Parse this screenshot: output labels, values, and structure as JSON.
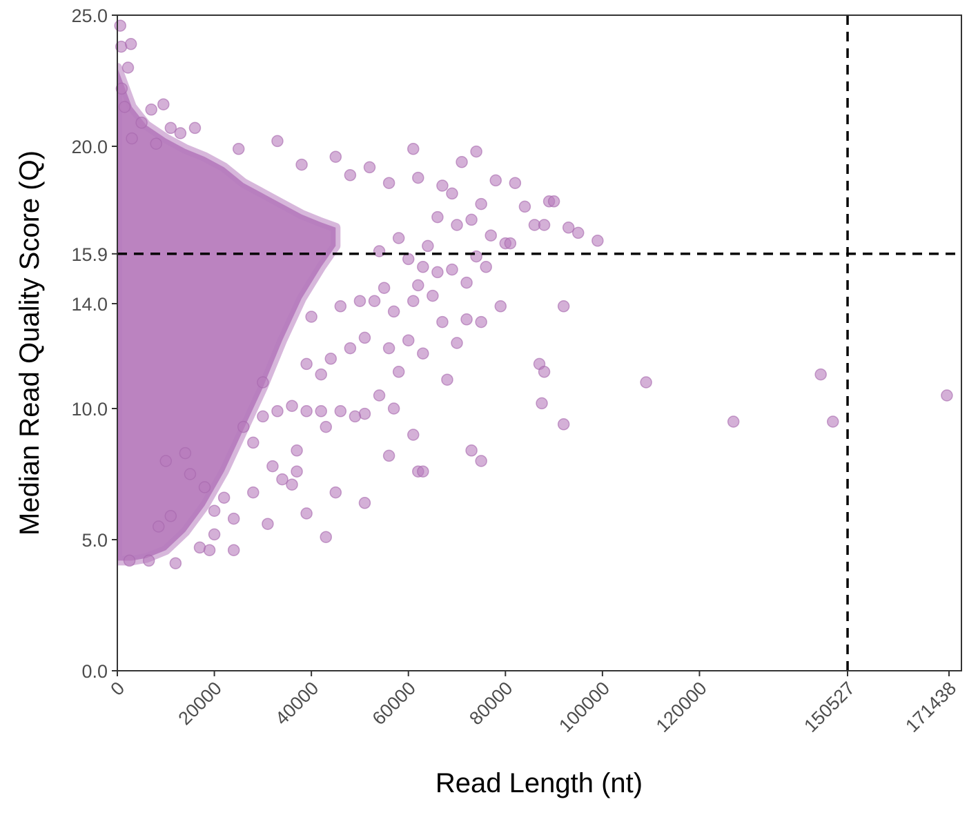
{
  "chart_data": {
    "type": "scatter",
    "title": "",
    "xlabel": "Read Length (nt)",
    "ylabel": "Median Read Quality Score (Q)",
    "xlim": [
      0,
      174000
    ],
    "ylim": [
      0,
      25
    ],
    "x_ticks": [
      {
        "value": 0,
        "label": "0"
      },
      {
        "value": 20000,
        "label": "20000"
      },
      {
        "value": 40000,
        "label": "40000"
      },
      {
        "value": 60000,
        "label": "60000"
      },
      {
        "value": 80000,
        "label": "80000"
      },
      {
        "value": 100000,
        "label": "100000"
      },
      {
        "value": 120000,
        "label": "120000"
      },
      {
        "value": 150527,
        "label": "150527"
      },
      {
        "value": 171438,
        "label": "171438"
      }
    ],
    "y_ticks": [
      {
        "value": 0,
        "label": "0.0"
      },
      {
        "value": 5,
        "label": "5.0"
      },
      {
        "value": 10,
        "label": "10.0"
      },
      {
        "value": 14,
        "label": "14.0"
      },
      {
        "value": 15.9,
        "label": "15.9"
      },
      {
        "value": 20,
        "label": "20.0"
      },
      {
        "value": 25,
        "label": "25.0"
      }
    ],
    "reference_lines": {
      "vertical_x": 150527,
      "horizontal_y": 15.9,
      "style": "dashed",
      "color": "#000000"
    },
    "point_color": "#b77cbd",
    "point_opacity": 0.6,
    "grid": false,
    "series": [
      {
        "points": [
          [
            600,
            24.6
          ],
          [
            800,
            23.8
          ],
          [
            2800,
            23.9
          ],
          [
            2200,
            23
          ],
          [
            900,
            22.2
          ],
          [
            1500,
            21.5
          ],
          [
            9500,
            21.6
          ],
          [
            7000,
            21.4
          ],
          [
            5000,
            20.9
          ],
          [
            11000,
            20.7
          ],
          [
            16000,
            20.7
          ],
          [
            13000,
            20.5
          ],
          [
            3000,
            20.3
          ],
          [
            8000,
            20.1
          ],
          [
            25000,
            19.9
          ],
          [
            33000,
            20.2
          ],
          [
            45000,
            19.6
          ],
          [
            38000,
            19.3
          ],
          [
            52000,
            19.2
          ],
          [
            61000,
            19.9
          ],
          [
            74000,
            19.8
          ],
          [
            71000,
            19.4
          ],
          [
            48000,
            18.9
          ],
          [
            56000,
            18.6
          ],
          [
            62000,
            18.8
          ],
          [
            67000,
            18.5
          ],
          [
            69000,
            18.2
          ],
          [
            78000,
            18.7
          ],
          [
            82000,
            18.6
          ],
          [
            89000,
            17.9
          ],
          [
            90000,
            17.9
          ],
          [
            75000,
            17.8
          ],
          [
            84000,
            17.7
          ],
          [
            66000,
            17.3
          ],
          [
            70000,
            17.0
          ],
          [
            73000,
            17.2
          ],
          [
            77000,
            16.6
          ],
          [
            86000,
            17.0
          ],
          [
            88000,
            17.0
          ],
          [
            93000,
            16.9
          ],
          [
            95000,
            16.7
          ],
          [
            99000,
            16.4
          ],
          [
            80000,
            16.3
          ],
          [
            81000,
            16.3
          ],
          [
            64000,
            16.2
          ],
          [
            58000,
            16.5
          ],
          [
            54000,
            16.0
          ],
          [
            60000,
            15.7
          ],
          [
            63000,
            15.4
          ],
          [
            66000,
            15.2
          ],
          [
            69000,
            15.3
          ],
          [
            74000,
            15.8
          ],
          [
            76000,
            15.4
          ],
          [
            72000,
            14.8
          ],
          [
            62000,
            14.7
          ],
          [
            65000,
            14.3
          ],
          [
            61000,
            14.1
          ],
          [
            55000,
            14.6
          ],
          [
            53000,
            14.1
          ],
          [
            57000,
            13.7
          ],
          [
            50000,
            14.1
          ],
          [
            46000,
            13.9
          ],
          [
            40000,
            13.5
          ],
          [
            79000,
            13.9
          ],
          [
            92000,
            13.9
          ],
          [
            75000,
            13.3
          ],
          [
            72000,
            13.4
          ],
          [
            67000,
            13.3
          ],
          [
            70000,
            12.5
          ],
          [
            63000,
            12.1
          ],
          [
            60000,
            12.6
          ],
          [
            56000,
            12.3
          ],
          [
            51000,
            12.7
          ],
          [
            48000,
            12.3
          ],
          [
            44000,
            11.9
          ],
          [
            42000,
            11.3
          ],
          [
            39000,
            11.7
          ],
          [
            30000,
            11.0
          ],
          [
            58000,
            11.4
          ],
          [
            68000,
            11.1
          ],
          [
            87000,
            11.7
          ],
          [
            88000,
            11.4
          ],
          [
            109000,
            11.0
          ],
          [
            145000,
            11.3
          ],
          [
            171000,
            10.5
          ],
          [
            87500,
            10.2
          ],
          [
            92000,
            9.4
          ],
          [
            127000,
            9.5
          ],
          [
            147500,
            9.5
          ],
          [
            61000,
            9.0
          ],
          [
            73000,
            8.4
          ],
          [
            75000,
            8.0
          ],
          [
            62000,
            7.6
          ],
          [
            63000,
            7.6
          ],
          [
            56000,
            8.2
          ],
          [
            43000,
            9.3
          ],
          [
            42000,
            9.9
          ],
          [
            46000,
            9.9
          ],
          [
            51000,
            9.8
          ],
          [
            49000,
            9.7
          ],
          [
            54000,
            10.5
          ],
          [
            57000,
            10.0
          ],
          [
            39000,
            9.9
          ],
          [
            36000,
            10.1
          ],
          [
            33000,
            9.9
          ],
          [
            30000,
            9.7
          ],
          [
            26000,
            9.3
          ],
          [
            28000,
            8.7
          ],
          [
            37000,
            8.4
          ],
          [
            45000,
            6.8
          ],
          [
            51000,
            6.4
          ],
          [
            43000,
            5.1
          ],
          [
            39000,
            6.0
          ],
          [
            37000,
            7.6
          ],
          [
            36000,
            7.1
          ],
          [
            34000,
            7.3
          ],
          [
            32000,
            7.8
          ],
          [
            28000,
            6.8
          ],
          [
            24000,
            5.8
          ],
          [
            20000,
            5.2
          ],
          [
            17000,
            4.7
          ],
          [
            12000,
            4.1
          ],
          [
            6500,
            4.2
          ],
          [
            2500,
            4.2
          ],
          [
            19000,
            4.6
          ],
          [
            24000,
            4.6
          ],
          [
            31000,
            5.6
          ],
          [
            20000,
            6.1
          ],
          [
            22000,
            6.6
          ],
          [
            18000,
            7.0
          ],
          [
            15000,
            7.5
          ],
          [
            14000,
            8.3
          ],
          [
            10000,
            8.0
          ],
          [
            11000,
            5.9
          ],
          [
            8500,
            5.5
          ]
        ]
      }
    ]
  }
}
